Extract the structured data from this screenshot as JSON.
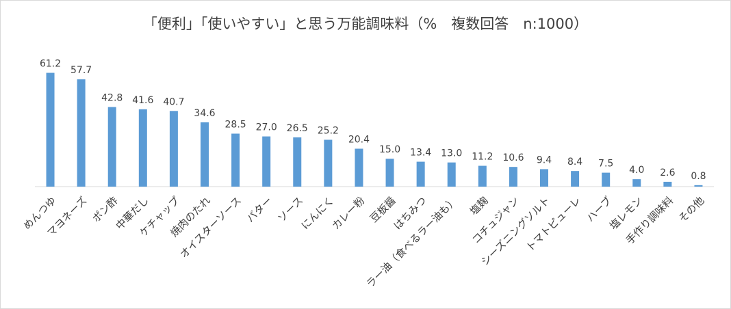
{
  "chart_data": {
    "type": "bar",
    "title": "「便利」「使いやすい」と思う万能調味料（%　複数回答　n:1000）",
    "xlabel": "",
    "ylabel": "",
    "ylim": [
      0,
      70
    ],
    "grid": false,
    "legend": "none",
    "bar_color": "#5b9bd5",
    "categories": [
      "めんつゆ",
      "マヨネーズ",
      "ポン酢",
      "中華だし",
      "ケチャップ",
      "焼肉のたれ",
      "オイスターソース",
      "バター",
      "ソース",
      "にんにく",
      "カレー粉",
      "豆板醤",
      "はちみつ",
      "ラー油（食べるラー油も）",
      "塩麹",
      "コチュジャン",
      "シーズニングソルト",
      "トマトピューレ",
      "ハーブ",
      "塩レモン",
      "手作り調味料",
      "その他"
    ],
    "values": [
      61.2,
      57.7,
      42.8,
      41.6,
      40.7,
      34.6,
      28.5,
      27.0,
      26.5,
      25.2,
      20.4,
      15.0,
      13.4,
      13.0,
      11.2,
      10.6,
      9.4,
      8.4,
      7.5,
      4.0,
      2.6,
      0.8
    ],
    "value_labels": [
      "61.2",
      "57.7",
      "42.8",
      "41.6",
      "40.7",
      "34.6",
      "28.5",
      "27.0",
      "26.5",
      "25.2",
      "20.4",
      "15.0",
      "13.4",
      "13.0",
      "11.2",
      "10.6",
      "9.4",
      "8.4",
      "7.5",
      "4.0",
      "2.6",
      "0.8"
    ]
  }
}
